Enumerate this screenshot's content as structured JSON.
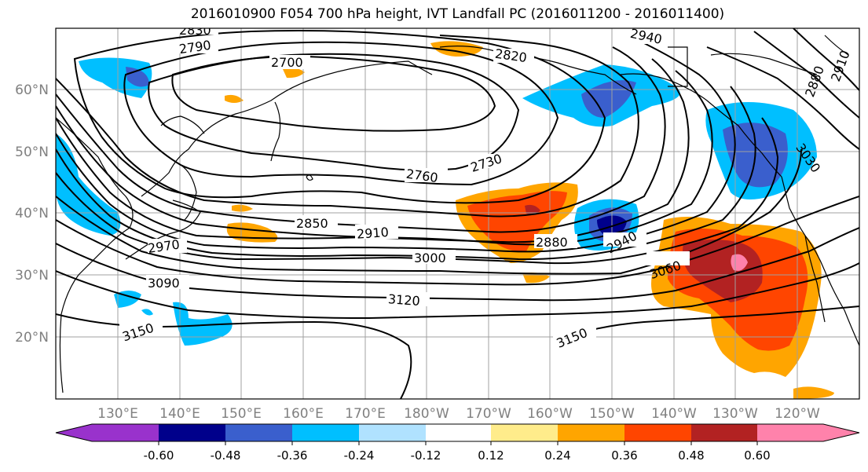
{
  "title": "2016010900 F054 700 hPa height, IVT Landfall PC (2016011200 - 2016011400)",
  "lat_labels": [
    "60°N",
    "50°N",
    "40°N",
    "30°N",
    "20°N"
  ],
  "lon_labels": [
    "130°E",
    "140°E",
    "150°E",
    "160°E",
    "170°E",
    "180°W",
    "170°W",
    "160°W",
    "150°W",
    "140°W",
    "130°W",
    "120°W"
  ],
  "contour_labels": [
    "2830",
    "2790",
    "2700",
    "2820",
    "2940",
    "2730",
    "2760",
    "2850",
    "2910",
    "2880",
    "2940",
    "2970",
    "3000",
    "3060",
    "3090",
    "3120",
    "3150",
    "3150",
    "3030",
    "2880",
    "2910"
  ],
  "colorbar": {
    "tick_labels": [
      "-0.60",
      "-0.48",
      "-0.36",
      "-0.24",
      "-0.12",
      "0.12",
      "0.24",
      "0.36",
      "0.48",
      "0.60"
    ],
    "colors": [
      "#9932cc",
      "#00008b",
      "#3a5fcd",
      "#00bfff",
      "#b0e2ff",
      "#ffffff",
      "#ffec8b",
      "#ffa500",
      "#ff4500",
      "#b22222",
      "#ff82ab"
    ]
  },
  "colors": {
    "contour": "#000000",
    "grid": "#a0a0a0",
    "axis_text": "#808080"
  }
}
